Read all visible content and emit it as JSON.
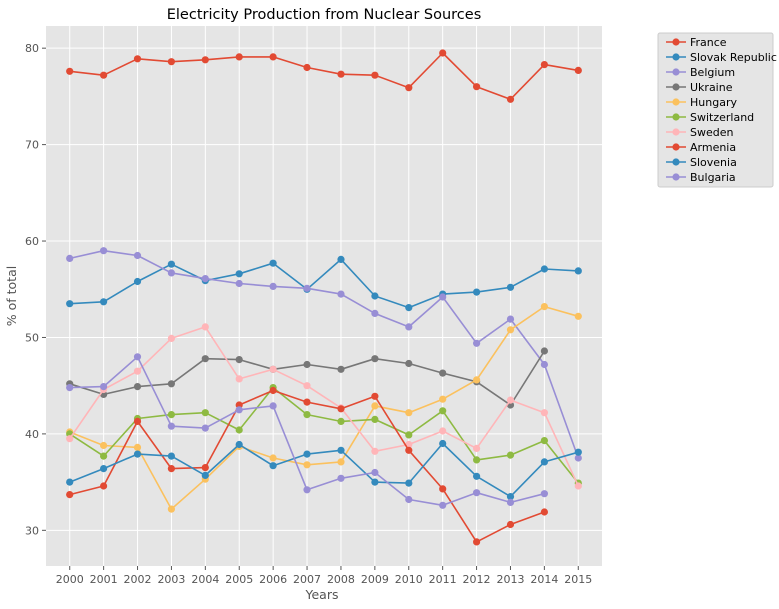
{
  "chart_data": {
    "type": "line",
    "title": "Electricity Production from Nuclear Sources",
    "xlabel": "Years",
    "ylabel": "% of total",
    "x": [
      2000,
      2001,
      2002,
      2003,
      2004,
      2005,
      2006,
      2007,
      2008,
      2009,
      2010,
      2011,
      2012,
      2013,
      2014,
      2015
    ],
    "xlim": [
      1999.3,
      2015.7
    ],
    "ylim": [
      26.3,
      82.3
    ],
    "yticks": [
      30,
      40,
      50,
      60,
      70,
      80
    ],
    "grid": true,
    "legend_position": "outside-right-top",
    "series": [
      {
        "name": "France",
        "color": "#E24A33",
        "values": [
          77.6,
          77.2,
          78.9,
          78.6,
          78.8,
          79.1,
          79.1,
          78.0,
          77.3,
          77.2,
          75.9,
          79.5,
          76.0,
          74.7,
          78.3,
          77.7
        ]
      },
      {
        "name": "Slovak Republic",
        "color": "#348ABD",
        "values": [
          53.5,
          53.7,
          55.8,
          57.6,
          55.9,
          56.6,
          57.7,
          55.0,
          58.1,
          54.3,
          53.1,
          54.5,
          54.7,
          55.2,
          57.1,
          56.9
        ]
      },
      {
        "name": "Belgium",
        "color": "#988ED5",
        "values": [
          58.2,
          59.0,
          58.5,
          56.7,
          56.1,
          55.6,
          55.3,
          55.1,
          54.5,
          52.5,
          51.1,
          54.2,
          49.4,
          51.9,
          47.2,
          37.5
        ]
      },
      {
        "name": "Ukraine",
        "color": "#777777",
        "values": [
          45.2,
          44.1,
          44.9,
          45.2,
          47.8,
          47.7,
          46.7,
          47.2,
          46.7,
          47.8,
          47.3,
          46.3,
          45.4,
          43.0,
          48.6,
          null
        ]
      },
      {
        "name": "Hungary",
        "color": "#FBC15E",
        "values": [
          40.2,
          38.8,
          38.6,
          32.2,
          35.3,
          38.7,
          37.5,
          36.8,
          37.1,
          42.9,
          42.2,
          43.6,
          45.6,
          50.8,
          53.2,
          52.2
        ]
      },
      {
        "name": "Switzerland",
        "color": "#8EBA42",
        "values": [
          40.0,
          37.7,
          41.6,
          42.0,
          42.2,
          40.4,
          44.8,
          42.0,
          41.3,
          41.5,
          39.9,
          42.4,
          37.3,
          37.8,
          39.3,
          34.9
        ]
      },
      {
        "name": "Sweden",
        "color": "#FFB5B8",
        "values": [
          39.5,
          44.6,
          46.5,
          49.9,
          51.1,
          45.7,
          46.7,
          45.0,
          42.7,
          38.2,
          38.9,
          40.3,
          38.5,
          43.5,
          42.2,
          34.6
        ]
      },
      {
        "name": "Armenia",
        "color": "#E24A33",
        "values": [
          33.7,
          34.6,
          41.3,
          36.4,
          36.5,
          43.0,
          44.5,
          43.3,
          42.6,
          43.9,
          38.3,
          34.3,
          28.8,
          30.6,
          31.9,
          null
        ]
      },
      {
        "name": "Slovenia",
        "color": "#348ABD",
        "values": [
          35.0,
          36.4,
          37.9,
          37.7,
          35.7,
          38.9,
          36.7,
          37.9,
          38.3,
          35.0,
          34.9,
          39.0,
          35.6,
          33.5,
          37.1,
          38.1
        ]
      },
      {
        "name": "Bulgaria",
        "color": "#988ED5",
        "values": [
          44.8,
          44.9,
          48.0,
          40.8,
          40.6,
          42.5,
          42.9,
          34.2,
          35.4,
          36.0,
          33.2,
          32.6,
          33.9,
          32.9,
          33.8,
          null
        ]
      }
    ]
  }
}
